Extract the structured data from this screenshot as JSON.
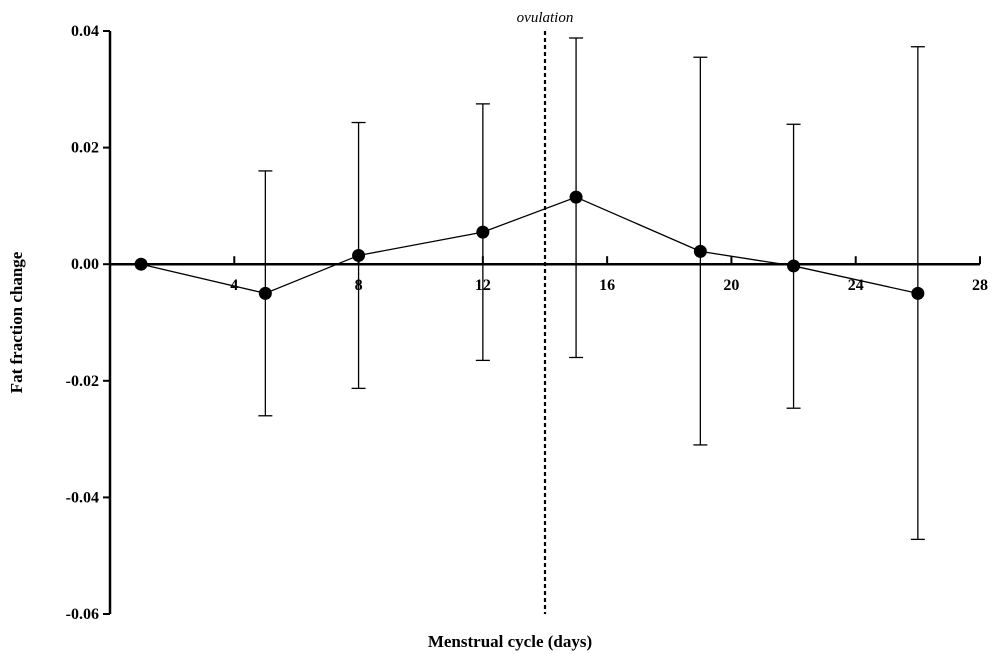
{
  "chart_data": {
    "type": "scatter",
    "title": "",
    "xlabel": "Menstrual cycle (days)",
    "ylabel": "Fat fraction change",
    "xlim": [
      0,
      28
    ],
    "ylim": [
      -0.06,
      0.04
    ],
    "x_ticks": [
      4,
      8,
      12,
      16,
      20,
      24,
      28
    ],
    "y_ticks": [
      0.04,
      0.02,
      0.0,
      -0.02,
      -0.04,
      -0.06
    ],
    "x_tick_labels": [
      "4",
      "8",
      "12",
      "16",
      "20",
      "24",
      "28"
    ],
    "y_tick_labels": [
      "0.04",
      "0.02",
      "0.00",
      "-0.02",
      "-0.04",
      "-0.06"
    ],
    "grid": false,
    "x_axis_crosses_at_y": 0,
    "series": [
      {
        "x": [
          1,
          5,
          8,
          12,
          15,
          19,
          22,
          26
        ],
        "y": [
          0.0,
          -0.005,
          0.0015,
          0.0055,
          0.0115,
          0.0022,
          -0.0003,
          -0.005
        ],
        "err_upper": [
          0.0,
          0.016,
          0.0243,
          0.0275,
          0.0388,
          0.0355,
          0.024,
          0.0373
        ],
        "err_lower": [
          0.0,
          -0.026,
          -0.0213,
          -0.0165,
          -0.016,
          -0.031,
          -0.0247,
          -0.0472
        ]
      }
    ],
    "annotations": [
      {
        "text": "ovulation",
        "x": 14,
        "style": "dotted vertical line"
      }
    ]
  }
}
